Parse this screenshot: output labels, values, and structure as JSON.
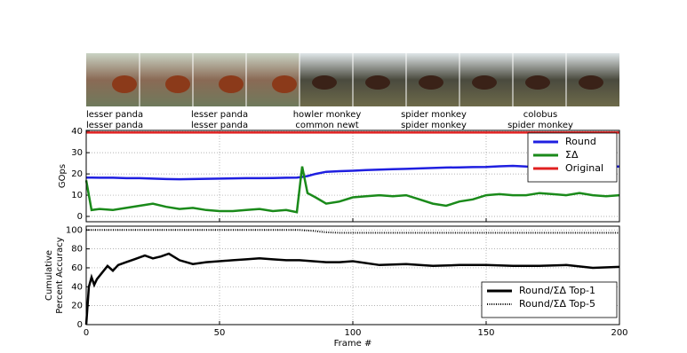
{
  "frame_labels": [
    {
      "top": "lesser panda",
      "bottom": "lesser panda"
    },
    {
      "top": "lesser panda",
      "bottom": "lesser panda"
    },
    {
      "top": "howler monkey",
      "bottom": "common newt"
    },
    {
      "top": "spider monkey",
      "bottom": "spider monkey"
    },
    {
      "top": "colobus",
      "bottom": "spider monkey"
    }
  ],
  "chart_data": [
    {
      "type": "line",
      "ylabel": "GOps",
      "xlim": [
        0,
        200
      ],
      "xticks": [
        0,
        50,
        100,
        150,
        200
      ],
      "ylim": [
        -2.5,
        40.5
      ],
      "yticks": [
        0,
        10,
        20,
        30,
        40
      ],
      "grid": true,
      "legend": "upper right",
      "x": [
        0,
        2,
        5,
        10,
        15,
        20,
        25,
        30,
        35,
        40,
        45,
        50,
        55,
        60,
        65,
        70,
        75,
        79,
        81,
        83,
        86,
        90,
        95,
        100,
        105,
        110,
        115,
        120,
        125,
        130,
        135,
        140,
        145,
        150,
        155,
        160,
        165,
        170,
        175,
        180,
        185,
        190,
        195,
        200
      ],
      "series": [
        {
          "name": "Round",
          "color": "#1f1fe0",
          "values": [
            18.3,
            18.3,
            18.2,
            18.2,
            18,
            18,
            17.8,
            17.6,
            17.5,
            17.6,
            17.7,
            17.8,
            17.9,
            18,
            18,
            18.1,
            18.2,
            18.3,
            18.6,
            19,
            20,
            21,
            21.3,
            21.5,
            21.8,
            22,
            22.2,
            22.4,
            22.6,
            22.8,
            23,
            23.1,
            23.2,
            23.3,
            23.6,
            23.8,
            23.5,
            23.4,
            23.6,
            23.5,
            23.4,
            23.4,
            23.5,
            23.5
          ]
        },
        {
          "name": "ΣΔ",
          "color": "#1a8a1a",
          "values": [
            17,
            3,
            3.5,
            3,
            4,
            5,
            6,
            4.5,
            3.5,
            4,
            3,
            2.5,
            2.5,
            3,
            3.5,
            2.5,
            3,
            2,
            23.5,
            11,
            9,
            6,
            7,
            9,
            9.5,
            10,
            9.5,
            10,
            8,
            6,
            5,
            7,
            8,
            10,
            10.5,
            10,
            10,
            11,
            10.5,
            10,
            11,
            10,
            9.5,
            10
          ]
        },
        {
          "name": "Original",
          "color": "#e02020",
          "values": [
            39.5,
            39.5,
            39.5,
            39.5,
            39.5,
            39.5,
            39.5,
            39.5,
            39.5,
            39.5,
            39.5,
            39.5,
            39.5,
            39.5,
            39.5,
            39.5,
            39.5,
            39.5,
            39.5,
            39.5,
            39.5,
            39.5,
            39.5,
            39.5,
            39.5,
            39.5,
            39.5,
            39.5,
            39.5,
            39.5,
            39.5,
            39.5,
            39.5,
            39.5,
            39.5,
            39.5,
            39.5,
            39.5,
            39.5,
            39.5,
            39.5,
            39.5,
            39.5,
            39.5
          ]
        }
      ]
    },
    {
      "type": "line",
      "xlabel": "Frame #",
      "ylabel": [
        "Cumulative",
        "Percent Accuracy"
      ],
      "xlim": [
        0,
        200
      ],
      "xticks": [
        0,
        50,
        100,
        150,
        200
      ],
      "ylim": [
        0,
        104
      ],
      "yticks": [
        0,
        20,
        40,
        60,
        80,
        100
      ],
      "grid": true,
      "legend": "lower right",
      "x": [
        0,
        1,
        2,
        3,
        4,
        6,
        8,
        10,
        12,
        15,
        18,
        22,
        25,
        28,
        31,
        35,
        40,
        45,
        50,
        55,
        60,
        65,
        70,
        75,
        80,
        85,
        90,
        95,
        100,
        110,
        120,
        130,
        140,
        150,
        160,
        170,
        180,
        190,
        200
      ],
      "series": [
        {
          "name": "Round/ΣΔ Top-1",
          "color": "#000000",
          "linestyle": "solid",
          "values": [
            0,
            40,
            50,
            42,
            48,
            55,
            62,
            57,
            63,
            66,
            69,
            73,
            70,
            72,
            75,
            68,
            64,
            66,
            67,
            68,
            69,
            70,
            69,
            68,
            68,
            67,
            66,
            66,
            67,
            63,
            64,
            62,
            63,
            63,
            62,
            62,
            63,
            60,
            61
          ]
        },
        {
          "name": "Round/ΣΔ Top-5",
          "color": "#000000",
          "linestyle": "dotted",
          "values": [
            100,
            100,
            100,
            100,
            100,
            100,
            100,
            100,
            100,
            100,
            100,
            100,
            100,
            100,
            100,
            100,
            100,
            100,
            100,
            100,
            100,
            100,
            100,
            100,
            100,
            99,
            97.5,
            97,
            97,
            97,
            97,
            97,
            97,
            97,
            97,
            97,
            97,
            97,
            97
          ]
        }
      ]
    }
  ]
}
